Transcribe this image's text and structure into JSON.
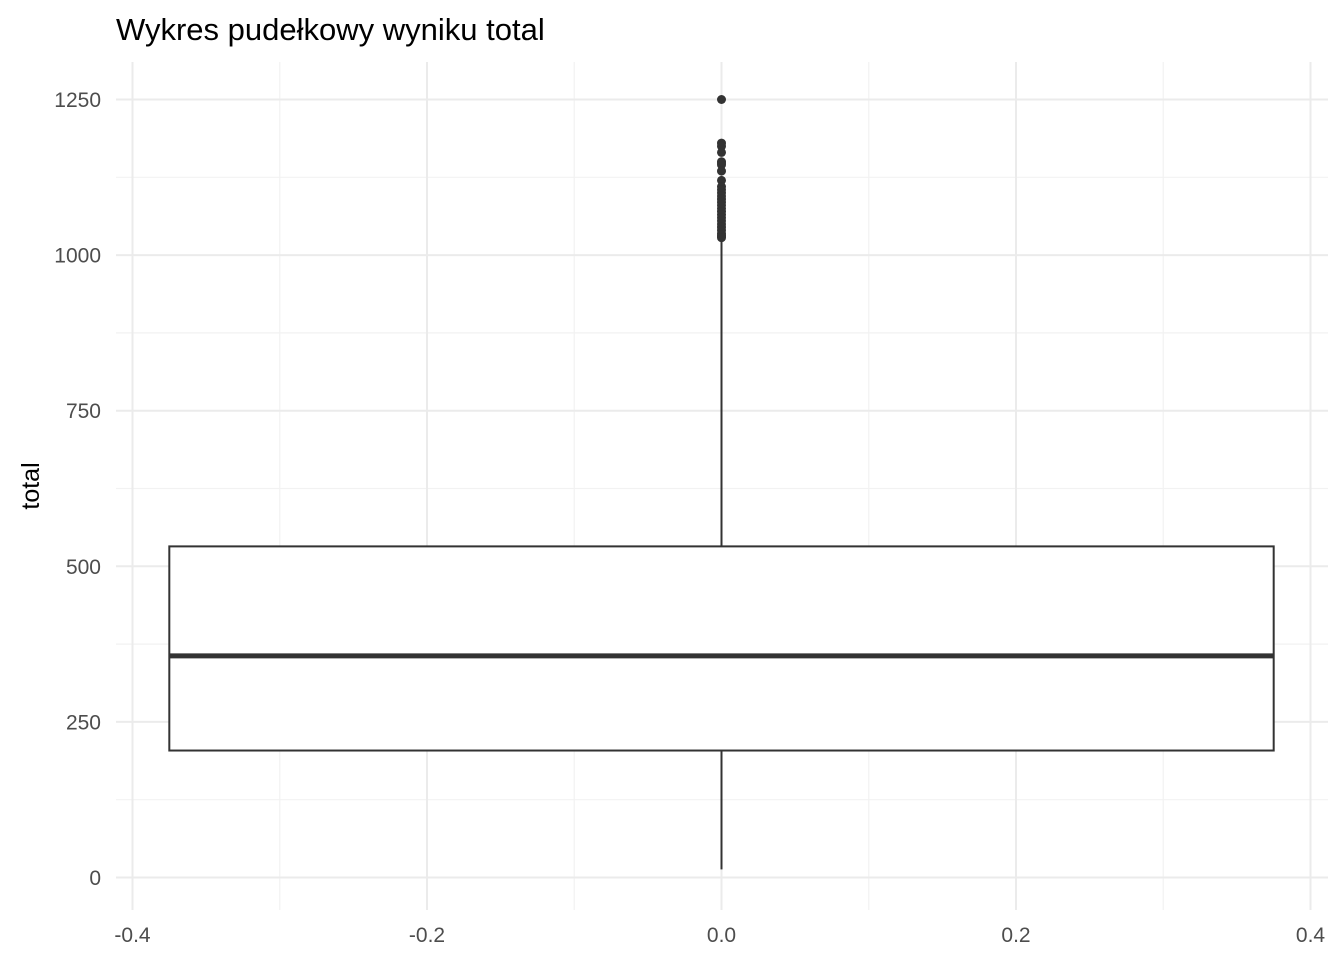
{
  "chart_data": {
    "type": "box",
    "title": "Wykres pudełkowy wyniku total",
    "xlabel": "",
    "ylabel": "total",
    "xlim": [
      -0.4,
      0.4
    ],
    "ylim": [
      0,
      1250
    ],
    "x_ticks": [
      "-0.4",
      "-0.2",
      "0.0",
      "0.2",
      "0.4"
    ],
    "x_tick_values": [
      -0.4,
      -0.2,
      0.0,
      0.2,
      0.4
    ],
    "y_ticks": [
      "0",
      "250",
      "500",
      "750",
      "1000",
      "1250"
    ],
    "y_tick_values": [
      0,
      250,
      500,
      750,
      1000,
      1250
    ],
    "grid": true,
    "box": {
      "x_center": 0.0,
      "x_left": -0.375,
      "x_right": 0.375,
      "whisker_low": 13,
      "q1": 204,
      "median": 356,
      "q3": 532,
      "whisker_high": 1025
    },
    "outliers": [
      1250,
      1180,
      1175,
      1165,
      1150,
      1148,
      1145,
      1135,
      1120,
      1110,
      1105,
      1100,
      1095,
      1090,
      1085,
      1080,
      1075,
      1070,
      1065,
      1060,
      1055,
      1050,
      1045,
      1040,
      1035,
      1032,
      1030,
      1028
    ],
    "colors": {
      "box_stroke": "#333333",
      "outlier": "#333333",
      "background": "#ffffff"
    }
  }
}
